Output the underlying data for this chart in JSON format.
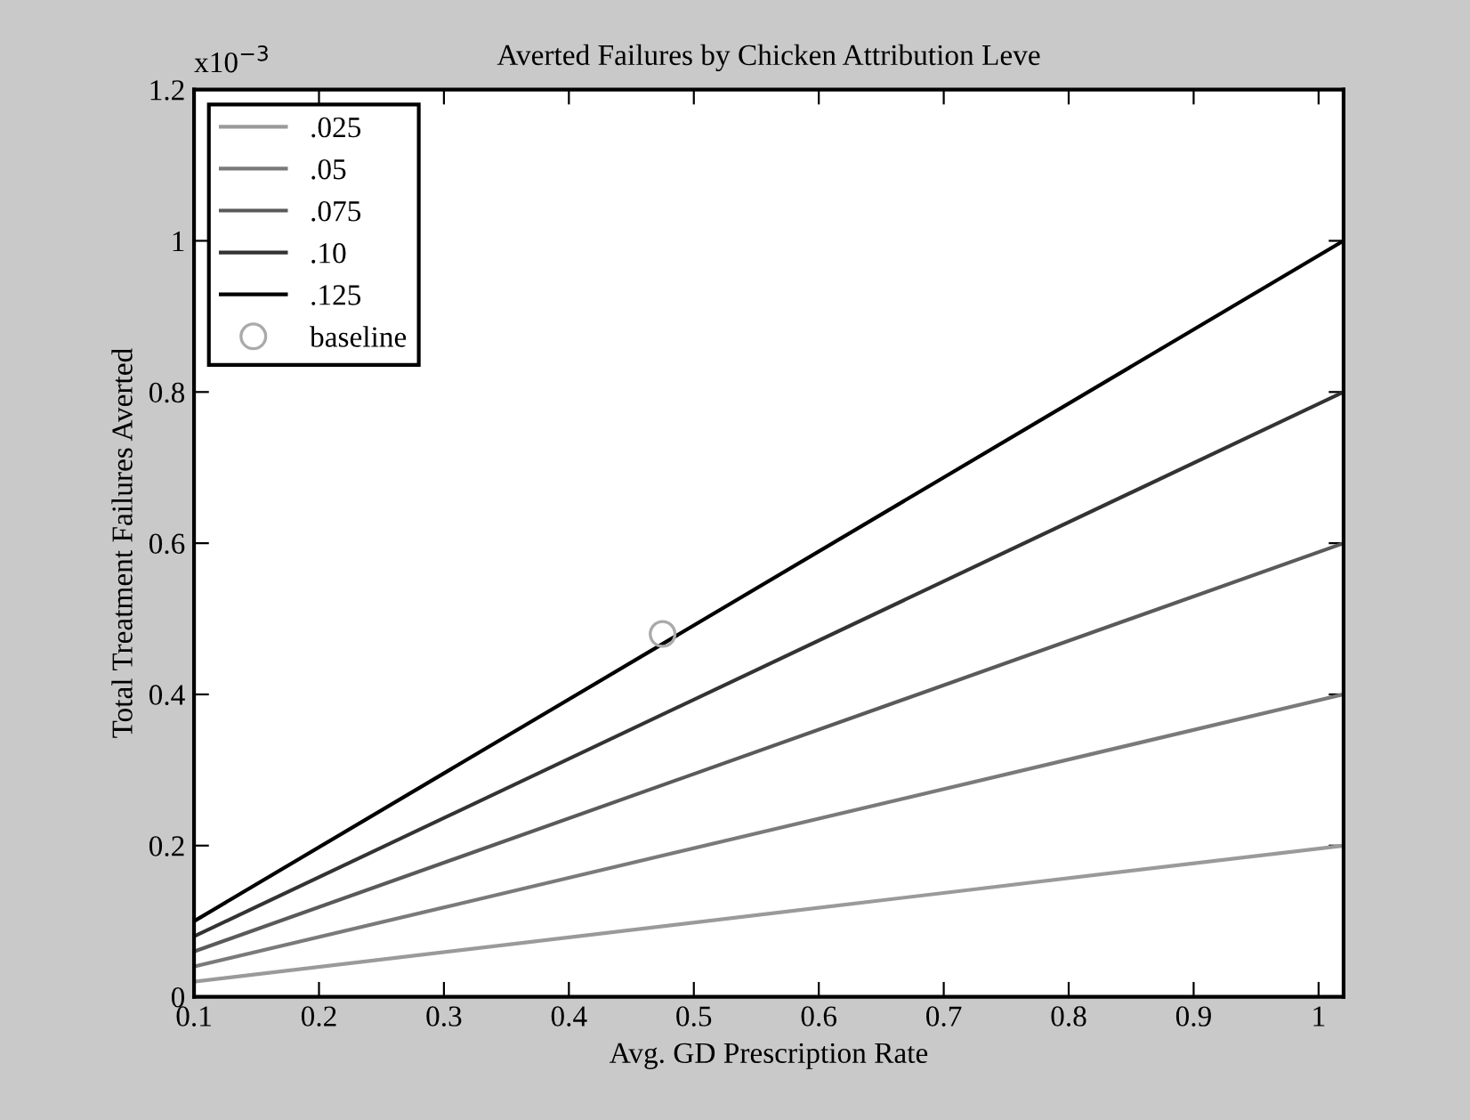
{
  "chart_data": {
    "type": "line",
    "title": "Averted Failures by Chicken Attribution Leve",
    "xlabel": "Avg. GD Prescription Rate",
    "ylabel": "Total Treatment Failures Averted",
    "annotations": [
      "x10$^{−3}$"
    ],
    "x": [
      0.1,
      1.02
    ],
    "series": [
      {
        "name": ".025",
        "color": "#9a9a9a",
        "values": [
          0.02,
          0.2
        ]
      },
      {
        "name": ".05",
        "color": "#7a7a7a",
        "values": [
          0.04,
          0.4
        ]
      },
      {
        "name": ".075",
        "color": "#5a5a5a",
        "values": [
          0.06,
          0.6
        ]
      },
      {
        "name": ".10",
        "color": "#333333",
        "values": [
          0.08,
          0.8
        ]
      },
      {
        "name": ".125",
        "color": "#000000",
        "values": [
          0.1,
          1.0
        ]
      },
      {
        "name": "baseline",
        "type": "scatter",
        "marker": "circle",
        "color": "#aaaaaa",
        "x": [
          0.475
        ],
        "values": [
          0.48
        ]
      }
    ],
    "xlim": [
      0.1,
      1.02
    ],
    "xticks": [
      0.1,
      0.2,
      0.3,
      0.4,
      0.5,
      0.6,
      0.7,
      0.8,
      0.9,
      1
    ],
    "ylim": [
      0,
      1.2
    ],
    "yticks": [
      0,
      0.2,
      0.4,
      0.6,
      0.8,
      1,
      1.2
    ],
    "grid": false,
    "legend": "top left",
    "line_style": "solid"
  }
}
